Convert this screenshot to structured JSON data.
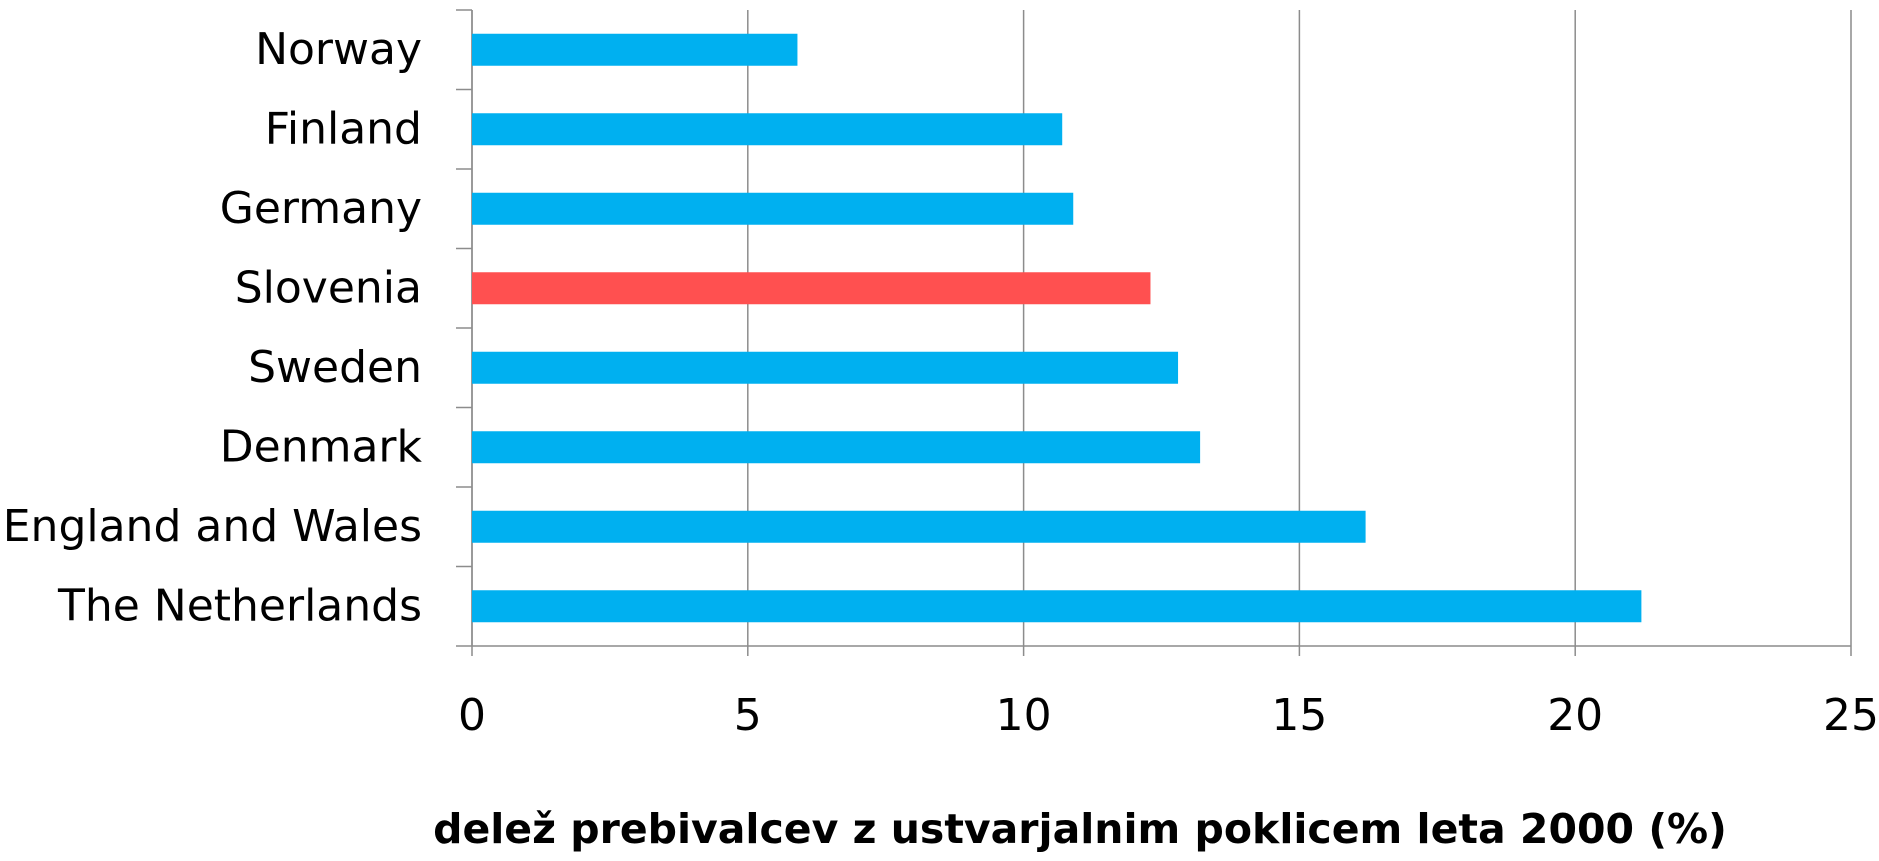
{
  "chart_data": {
    "type": "hbar",
    "categories": [
      "Norway",
      "Finland",
      "Germany",
      "Slovenia",
      "Sweden",
      "Denmark",
      "England and Wales",
      "The Netherlands"
    ],
    "values": [
      5.9,
      10.7,
      10.9,
      12.3,
      12.8,
      13.2,
      16.2,
      21.2
    ],
    "colors": [
      "#00b0f0",
      "#00b0f0",
      "#00b0f0",
      "#ff5050",
      "#00b0f0",
      "#00b0f0",
      "#00b0f0",
      "#00b0f0"
    ],
    "xlim": [
      0,
      25
    ],
    "xticks": [
      0,
      5,
      10,
      15,
      20,
      25
    ],
    "grid": true,
    "x_label": "delež prebivalcev z ustvarjalnim poklicem leta 2000 (%)"
  }
}
